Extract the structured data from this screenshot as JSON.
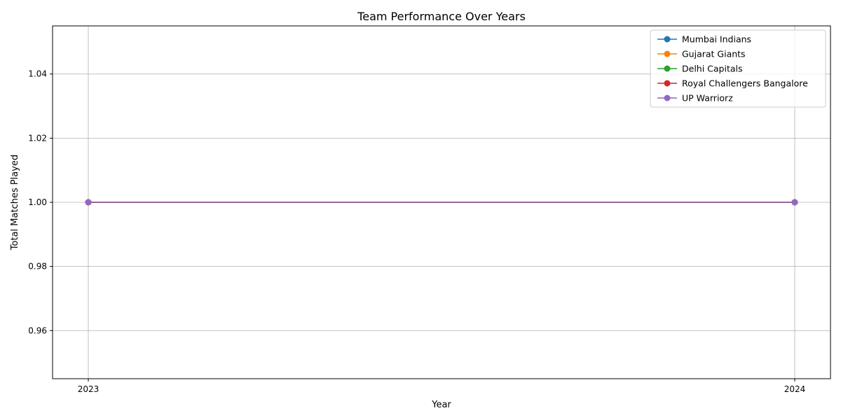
{
  "chart_data": {
    "type": "line",
    "title": "Team Performance Over Years",
    "xlabel": "Year",
    "ylabel": "Total Matches Played",
    "x": [
      "2023",
      "2024"
    ],
    "ylim": [
      0.945,
      1.055
    ],
    "yticks": [
      "0.96",
      "0.98",
      "1.00",
      "1.02",
      "1.04"
    ],
    "ytick_values": [
      0.96,
      0.98,
      1.0,
      1.02,
      1.04
    ],
    "grid": true,
    "legend_position": "top-right",
    "series": [
      {
        "name": "Mumbai Indians",
        "values": [
          1,
          1
        ],
        "color": "#1f77b4"
      },
      {
        "name": "Gujarat Giants",
        "values": [
          1,
          1
        ],
        "color": "#ff7f0e"
      },
      {
        "name": "Delhi Capitals",
        "values": [
          1,
          1
        ],
        "color": "#2ca02c"
      },
      {
        "name": "Royal Challengers Bangalore",
        "values": [
          1,
          1
        ],
        "color": "#d62728"
      },
      {
        "name": "UP Warriorz",
        "values": [
          1,
          1
        ],
        "color": "#9467bd"
      }
    ]
  }
}
